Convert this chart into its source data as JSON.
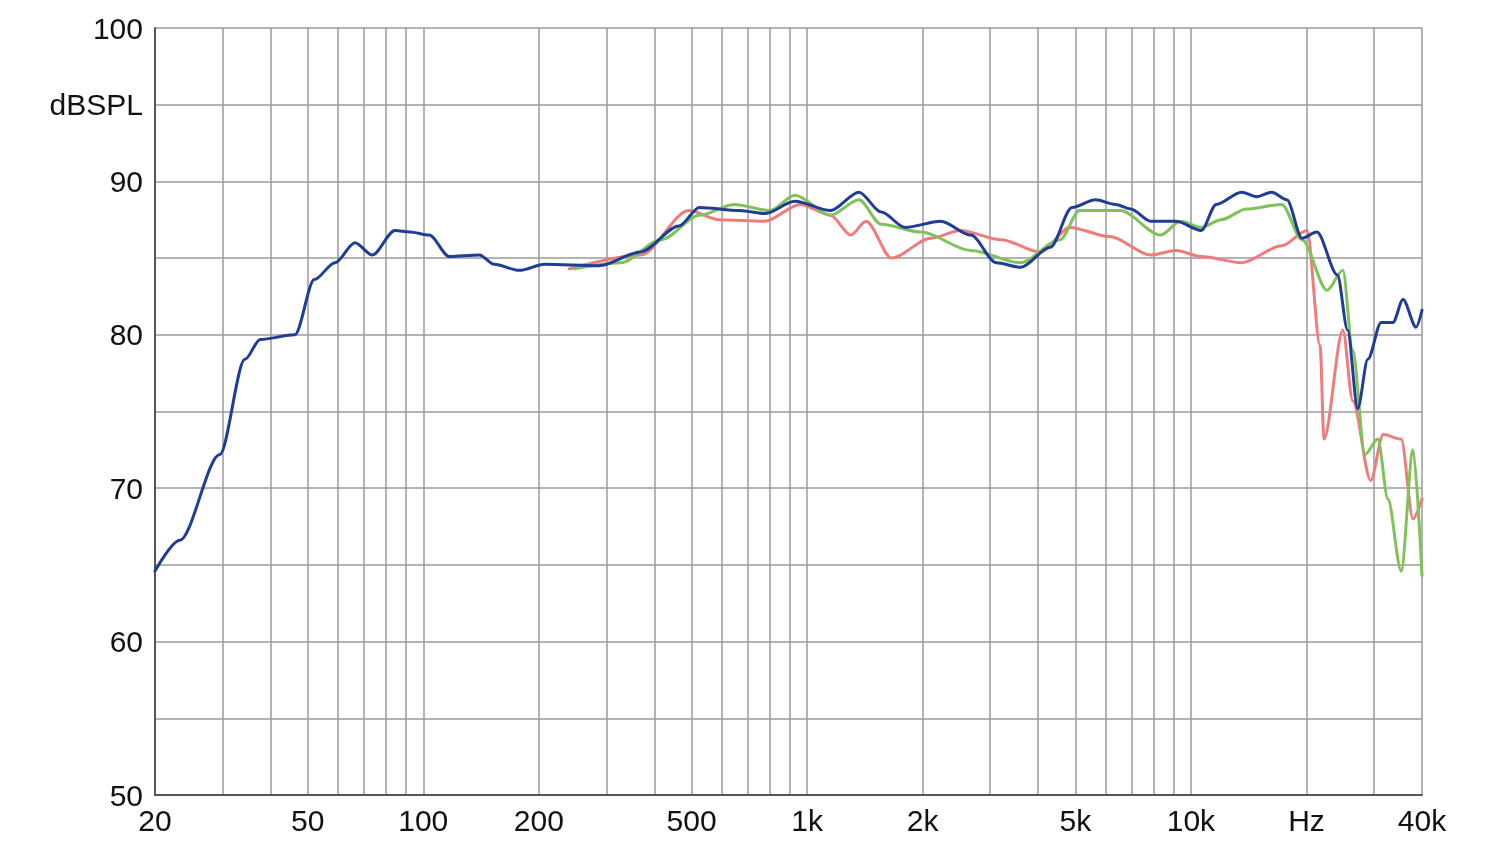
{
  "chart_data": {
    "type": "line",
    "ylabel": "dBSPL",
    "xlim": [
      20,
      40000
    ],
    "ylim": [
      50,
      100
    ],
    "log": "x",
    "grid": true,
    "marker": "none",
    "line_style": "solid",
    "xticks": [
      20,
      {
        "value": 30,
        "label": null
      },
      {
        "value": 40,
        "label": null
      },
      50,
      {
        "value": 60,
        "label": null
      },
      {
        "value": 70,
        "label": null
      },
      {
        "value": 80,
        "label": null
      },
      {
        "value": 90,
        "label": null
      },
      100,
      200,
      {
        "value": 300,
        "label": null
      },
      {
        "value": 400,
        "label": null
      },
      500,
      {
        "value": 600,
        "label": null
      },
      {
        "value": 700,
        "label": null
      },
      {
        "value": 800,
        "label": null
      },
      {
        "value": 900,
        "label": null
      },
      {
        "value": 1000,
        "label": "1k"
      },
      {
        "value": 2000,
        "label": "2k"
      },
      {
        "value": 3000,
        "label": null
      },
      {
        "value": 4000,
        "label": null
      },
      {
        "value": 5000,
        "label": "5k"
      },
      {
        "value": 6000,
        "label": null
      },
      {
        "value": 7000,
        "label": null
      },
      {
        "value": 8000,
        "label": null
      },
      {
        "value": 9000,
        "label": null
      },
      {
        "value": 10000,
        "label": "10k"
      },
      {
        "value": 20000,
        "label": "Hz"
      },
      {
        "value": 30000,
        "label": null
      },
      {
        "value": 40000,
        "label": "40k"
      }
    ],
    "yticks": [
      50,
      {
        "value": 55,
        "label": null
      },
      60,
      {
        "value": 65,
        "label": null
      },
      70,
      {
        "value": 75,
        "label": null
      },
      80,
      {
        "value": 85,
        "label": null
      },
      90,
      {
        "value": 95,
        "label": null
      },
      100
    ],
    "series": [
      {
        "color": "#ef7b7b",
        "x": [
          240,
          368,
          492,
          590,
          776,
          960,
          1150,
          1300,
          1425,
          1660,
          2100,
          2510,
          3200,
          4050,
          4840,
          6140,
          7860,
          9150,
          10640,
          13550,
          17250,
          20080,
          21700,
          22220,
          24880,
          26400,
          29400,
          31700,
          35300,
          37900,
          40000
        ],
        "values": [
          84.3,
          85.2,
          88.1,
          87.5,
          87.4,
          88.5,
          87.8,
          86.5,
          87.4,
          85.0,
          86.3,
          86.8,
          86.2,
          85.4,
          87.0,
          86.4,
          85.2,
          85.5,
          85.1,
          84.7,
          85.8,
          86.8,
          79.3,
          73.2,
          80.3,
          75.7,
          70.5,
          73.5,
          73.2,
          68.0,
          69.3
        ]
      },
      {
        "color": "#7fc25a",
        "x": [
          247,
          327,
          417,
          524,
          647,
          800,
          930,
          1150,
          1365,
          1560,
          1980,
          2670,
          3600,
          4560,
          5130,
          6550,
          8340,
          9400,
          10640,
          11990,
          13960,
          17250,
          19470,
          22640,
          24880,
          26400,
          28400,
          30700,
          32600,
          35300,
          37900,
          40000
        ],
        "values": [
          84.3,
          84.7,
          86.2,
          87.8,
          88.5,
          88.1,
          89.1,
          87.8,
          88.8,
          87.2,
          86.7,
          85.5,
          84.7,
          86.2,
          88.1,
          88.1,
          86.5,
          87.4,
          87.0,
          87.5,
          88.2,
          88.5,
          86.2,
          82.9,
          84.2,
          79.0,
          72.2,
          73.2,
          69.3,
          64.6,
          72.5,
          64.3
        ]
      },
      {
        "color": "#1f3c96",
        "x": [
          20,
          23.2,
          29.5,
          34.3,
          37.6,
          46.3,
          52,
          58.9,
          66.4,
          73.6,
          84.4,
          92.3,
          103.6,
          117,
          140,
          153,
          178,
          207,
          287,
          368,
          464,
          524,
          667,
          776,
          930,
          1150,
          1365,
          1560,
          1800,
          2230,
          2670,
          3110,
          3600,
          4300,
          4900,
          5640,
          6360,
          6970,
          7860,
          9150,
          10640,
          11640,
          13550,
          14840,
          16240,
          17780,
          19470,
          21300,
          24080,
          25600,
          27200,
          28900,
          31300,
          33600,
          35700,
          38600,
          40000
        ],
        "values": [
          64.6,
          66.6,
          72.2,
          78.4,
          79.7,
          80.0,
          83.6,
          84.7,
          86.0,
          85.2,
          86.8,
          86.7,
          86.5,
          85.1,
          85.2,
          84.6,
          84.2,
          84.6,
          84.5,
          85.4,
          87.1,
          88.3,
          88.1,
          87.9,
          88.7,
          88.1,
          89.3,
          88.0,
          87.0,
          87.4,
          86.5,
          84.7,
          84.4,
          85.7,
          88.3,
          88.8,
          88.5,
          88.2,
          87.4,
          87.4,
          86.8,
          88.5,
          89.3,
          89.0,
          89.3,
          88.8,
          86.3,
          86.7,
          83.9,
          80.3,
          75.2,
          78.4,
          80.8,
          80.8,
          82.3,
          80.5,
          81.6
        ]
      }
    ]
  }
}
